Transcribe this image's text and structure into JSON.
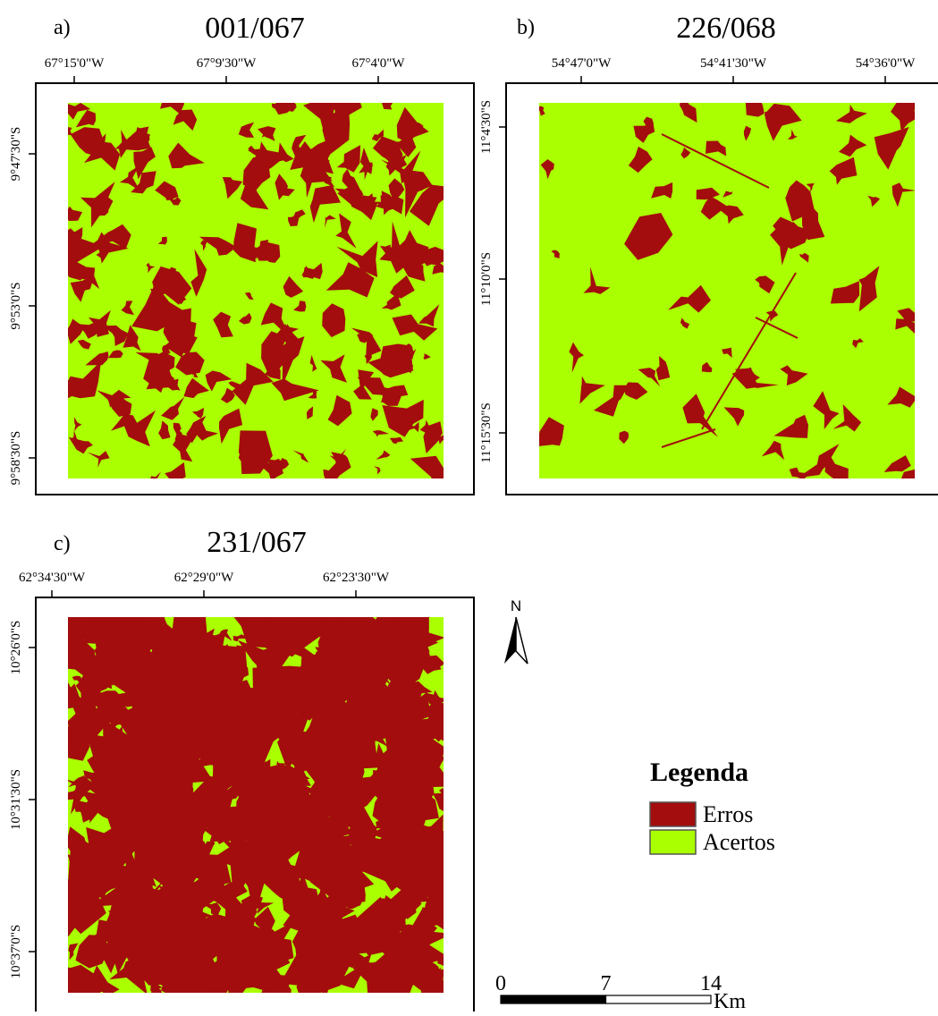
{
  "panels": [
    {
      "letter": "a)",
      "title": "001/067",
      "top_labels": [
        "67°15'0\"W",
        "67°9'30\"W",
        "67°4'0\"W"
      ],
      "left_labels": [
        "9°47'30\"S",
        "9°53'0\"S",
        "9°58'30\"S"
      ]
    },
    {
      "letter": "b)",
      "title": "226/068",
      "top_labels": [
        "54°47'0\"W",
        "54°41'30\"W",
        "54°36'0\"W"
      ],
      "left_labels": [
        "11°4'30\"S",
        "11°10'0\"S",
        "11°15'30\"S"
      ]
    },
    {
      "letter": "c)",
      "title": "231/067",
      "top_labels": [
        "62°34'30\"W",
        "62°29'0\"W",
        "62°23'30\"W"
      ],
      "left_labels": [
        "10°26'0\"S",
        "10°31'30\"S",
        "10°37'0\"S"
      ]
    }
  ],
  "north": "N",
  "legend": {
    "title": "Legenda",
    "items": [
      {
        "label": "Erros",
        "color": "#a30d0d"
      },
      {
        "label": "Acertos",
        "color": "#aaff00"
      }
    ]
  },
  "scale_bar": {
    "ticks": [
      0,
      7,
      14
    ],
    "unit": "Km"
  }
}
